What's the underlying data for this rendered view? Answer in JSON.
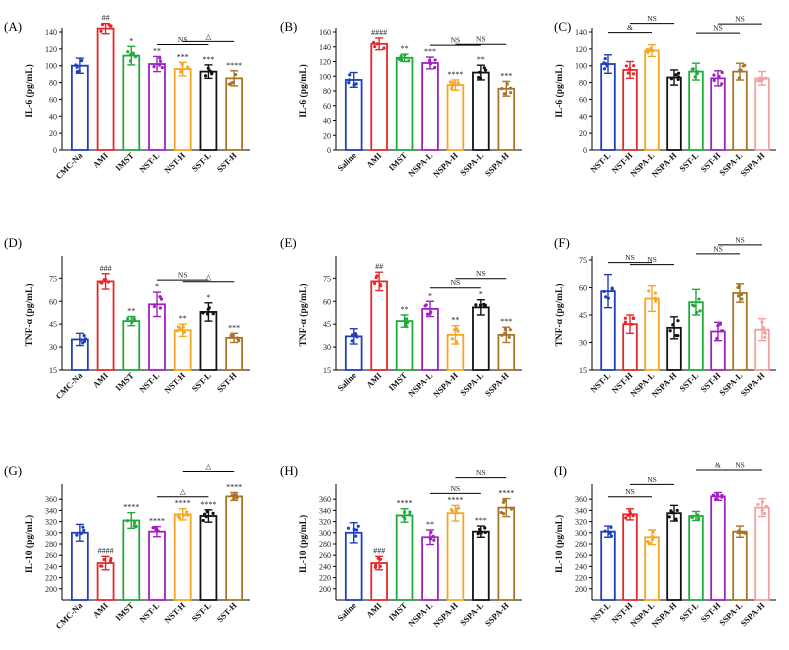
{
  "chart_data": [
    {
      "label": "(A)",
      "type": "bar",
      "ylabel": "IL-6 (pg/mL)",
      "ylim": [
        0,
        140
      ],
      "yticks": [
        0,
        20,
        40,
        60,
        80,
        100,
        120,
        140
      ],
      "categories": [
        "CMC-Na",
        "AMI",
        "IMST",
        "NST-L",
        "NST-H",
        "SST-L",
        "SST-H"
      ],
      "values": [
        100,
        144,
        112,
        102,
        96,
        93,
        85
      ],
      "errors": [
        9,
        6,
        11,
        9,
        8,
        8,
        9
      ],
      "colors": [
        "#1f3fbf",
        "#e8262a",
        "#1faa3a",
        "#a020c0",
        "#f5a623",
        "#111111",
        "#a8742a"
      ],
      "annotations": [
        "",
        "##",
        "*",
        "**",
        "***",
        "***",
        "****"
      ],
      "brackets": [
        {
          "from": 3,
          "to": 5,
          "text": "NS"
        },
        {
          "from": 4,
          "to": 6,
          "text": "△"
        }
      ]
    },
    {
      "label": "(B)",
      "type": "bar",
      "ylabel": "IL-6 (pg/mL)",
      "ylim": [
        0,
        160
      ],
      "yticks": [
        0,
        20,
        40,
        60,
        80,
        100,
        120,
        140,
        160
      ],
      "categories": [
        "Saline",
        "AMI",
        "IMST",
        "NSPA-L",
        "NSPA-H",
        "SSPA-L",
        "SSPA-H"
      ],
      "values": [
        95,
        144,
        125,
        118,
        88,
        105,
        83
      ],
      "errors": [
        10,
        8,
        5,
        8,
        7,
        10,
        10
      ],
      "colors": [
        "#1f3fbf",
        "#e8262a",
        "#1faa3a",
        "#a020c0",
        "#f5a623",
        "#111111",
        "#a8742a"
      ],
      "annotations": [
        "",
        "####",
        "**",
        "***",
        "****",
        "**",
        "***"
      ],
      "brackets": [
        {
          "from": 3,
          "to": 5,
          "text": "NS"
        },
        {
          "from": 4,
          "to": 6,
          "text": "NS"
        }
      ]
    },
    {
      "label": "(C)",
      "type": "bar",
      "ylabel": "IL-6 (pg/mL)",
      "ylim": [
        0,
        140
      ],
      "yticks": [
        0,
        20,
        40,
        60,
        80,
        100,
        120,
        140
      ],
      "categories": [
        "NST-L",
        "NST-H",
        "NSPA-L",
        "NSPA-H",
        "SST-L",
        "SST-H",
        "SSPA-L",
        "SSPA-H"
      ],
      "values": [
        102,
        95,
        118,
        86,
        93,
        85,
        93,
        85
      ],
      "errors": [
        11,
        10,
        7,
        9,
        10,
        9,
        10,
        8
      ],
      "colors": [
        "#1f3fbf",
        "#e8262a",
        "#f5a623",
        "#111111",
        "#1faa3a",
        "#a020c0",
        "#a8742a",
        "#f4a0a0"
      ],
      "annotations": [
        "",
        "",
        "",
        "",
        "",
        "",
        "",
        ""
      ],
      "brackets": [
        {
          "from": 0,
          "to": 2,
          "text": "&"
        },
        {
          "from": 1,
          "to": 3,
          "text": "NS"
        },
        {
          "from": 4,
          "to": 6,
          "text": "NS"
        },
        {
          "from": 5,
          "to": 7,
          "text": "NS"
        }
      ]
    },
    {
      "label": "(D)",
      "type": "bar",
      "ylabel": "TNF-α (pg/mL)",
      "ylim": [
        15,
        87
      ],
      "yticks": [
        15,
        30,
        45,
        60,
        75
      ],
      "categories": [
        "CMC-Na",
        "AMI",
        "IMST",
        "NST-L",
        "NST-H",
        "SST-L",
        "SST-H"
      ],
      "values": [
        35,
        73,
        47,
        58,
        41,
        53,
        36
      ],
      "errors": [
        4,
        5,
        3,
        8,
        4,
        6,
        3
      ],
      "colors": [
        "#1f3fbf",
        "#e8262a",
        "#1faa3a",
        "#a020c0",
        "#f5a623",
        "#111111",
        "#a8742a"
      ],
      "annotations": [
        "",
        "###",
        "**",
        "*",
        "**",
        "*",
        "***"
      ],
      "brackets": [
        {
          "from": 3,
          "to": 5,
          "text": "NS"
        },
        {
          "from": 4,
          "to": 6,
          "text": "△"
        }
      ]
    },
    {
      "label": "(E)",
      "type": "bar",
      "ylabel": "TNF-α (pg/mL)",
      "ylim": [
        15,
        87
      ],
      "yticks": [
        15,
        30,
        45,
        60,
        75
      ],
      "categories": [
        "Saline",
        "AMI",
        "IMST",
        "NSPA-L",
        "NSPA-H",
        "SSPA-L",
        "SSPA-H"
      ],
      "values": [
        37,
        73,
        47,
        55,
        38,
        56,
        38
      ],
      "errors": [
        5,
        6,
        4,
        5,
        6,
        5,
        5
      ],
      "colors": [
        "#1f3fbf",
        "#e8262a",
        "#1faa3a",
        "#a020c0",
        "#f5a623",
        "#111111",
        "#a8742a"
      ],
      "annotations": [
        "",
        "##",
        "**",
        "*",
        "**",
        "*",
        "***"
      ],
      "brackets": [
        {
          "from": 3,
          "to": 5,
          "text": "NS"
        },
        {
          "from": 4,
          "to": 6,
          "text": "NS"
        }
      ]
    },
    {
      "label": "(F)",
      "type": "bar",
      "ylabel": "TNF-α (pg/mL)",
      "ylim": [
        15,
        75
      ],
      "yticks": [
        15,
        30,
        45,
        60,
        75
      ],
      "categories": [
        "NST-L",
        "NST-H",
        "NSPA-L",
        "NSPA-H",
        "SST-L",
        "SST-H",
        "SSPA-L",
        "SSPA-H"
      ],
      "values": [
        58,
        40,
        54,
        38,
        52,
        36,
        57,
        37
      ],
      "errors": [
        9,
        5,
        7,
        6,
        7,
        5,
        5,
        6
      ],
      "colors": [
        "#1f3fbf",
        "#e8262a",
        "#f5a623",
        "#111111",
        "#1faa3a",
        "#a020c0",
        "#a8742a",
        "#f4a0a0"
      ],
      "annotations": [
        "",
        "",
        "",
        "",
        "",
        "",
        "",
        ""
      ],
      "brackets": [
        {
          "from": 0,
          "to": 2,
          "text": "NS"
        },
        {
          "from": 1,
          "to": 3,
          "text": "NS"
        },
        {
          "from": 4,
          "to": 6,
          "text": "NS"
        },
        {
          "from": 5,
          "to": 7,
          "text": "NS"
        }
      ]
    },
    {
      "label": "(G)",
      "type": "bar",
      "ylabel": "IL-10 (pg/mL)",
      "ylim": [
        180,
        380
      ],
      "yticks": [
        200,
        220,
        240,
        260,
        280,
        300,
        320,
        340,
        360
      ],
      "categories": [
        "CMC-Na",
        "AMI",
        "IMST",
        "NST-L",
        "NST-H",
        "SST-L",
        "SST-H"
      ],
      "values": [
        300,
        246,
        322,
        302,
        333,
        330,
        365
      ],
      "errors": [
        15,
        12,
        14,
        9,
        10,
        11,
        7
      ],
      "colors": [
        "#1f3fbf",
        "#e8262a",
        "#1faa3a",
        "#a020c0",
        "#f5a623",
        "#111111",
        "#a8742a"
      ],
      "annotations": [
        "",
        "####",
        "****",
        "****",
        "****",
        "****",
        "****"
      ],
      "brackets": [
        {
          "from": 3,
          "to": 5,
          "text": "△"
        },
        {
          "from": 4,
          "to": 6,
          "text": "△"
        }
      ]
    },
    {
      "label": "(H)",
      "type": "bar",
      "ylabel": "IL-10 (pg/mL)",
      "ylim": [
        180,
        380
      ],
      "yticks": [
        200,
        220,
        240,
        260,
        280,
        300,
        320,
        340,
        360
      ],
      "categories": [
        "Saline",
        "AMI",
        "IMST",
        "NSPA-L",
        "NSPA-H",
        "SSPA-L",
        "SSPA-H"
      ],
      "values": [
        300,
        246,
        331,
        292,
        335,
        302,
        345
      ],
      "errors": [
        18,
        12,
        12,
        13,
        14,
        10,
        16
      ],
      "colors": [
        "#1f3fbf",
        "#e8262a",
        "#1faa3a",
        "#a020c0",
        "#f5a623",
        "#111111",
        "#a8742a"
      ],
      "annotations": [
        "",
        "###",
        "****",
        "**",
        "****",
        "***",
        "****"
      ],
      "brackets": [
        {
          "from": 3,
          "to": 5,
          "text": "NS"
        },
        {
          "from": 4,
          "to": 6,
          "text": "NS"
        }
      ]
    },
    {
      "label": "(I)",
      "type": "bar",
      "ylabel": "IL-10 (pg/mL)",
      "ylim": [
        180,
        380
      ],
      "yticks": [
        200,
        220,
        240,
        260,
        280,
        300,
        320,
        340,
        360
      ],
      "categories": [
        "NST-L",
        "NST-H",
        "NSPA-L",
        "NSPA-H",
        "SST-L",
        "SST-H",
        "SSPA-L",
        "SSPA-H"
      ],
      "values": [
        302,
        333,
        292,
        335,
        330,
        365,
        302,
        345
      ],
      "errors": [
        10,
        10,
        13,
        14,
        8,
        7,
        10,
        16
      ],
      "colors": [
        "#1f3fbf",
        "#e8262a",
        "#f5a623",
        "#111111",
        "#1faa3a",
        "#a020c0",
        "#a8742a",
        "#f4a0a0"
      ],
      "annotations": [
        "",
        "",
        "",
        "",
        "",
        "",
        "",
        ""
      ],
      "brackets": [
        {
          "from": 0,
          "to": 2,
          "text": "NS"
        },
        {
          "from": 1,
          "to": 3,
          "text": "NS"
        },
        {
          "from": 4,
          "to": 6,
          "text": "&"
        },
        {
          "from": 5,
          "to": 7,
          "text": "NS"
        }
      ]
    }
  ]
}
